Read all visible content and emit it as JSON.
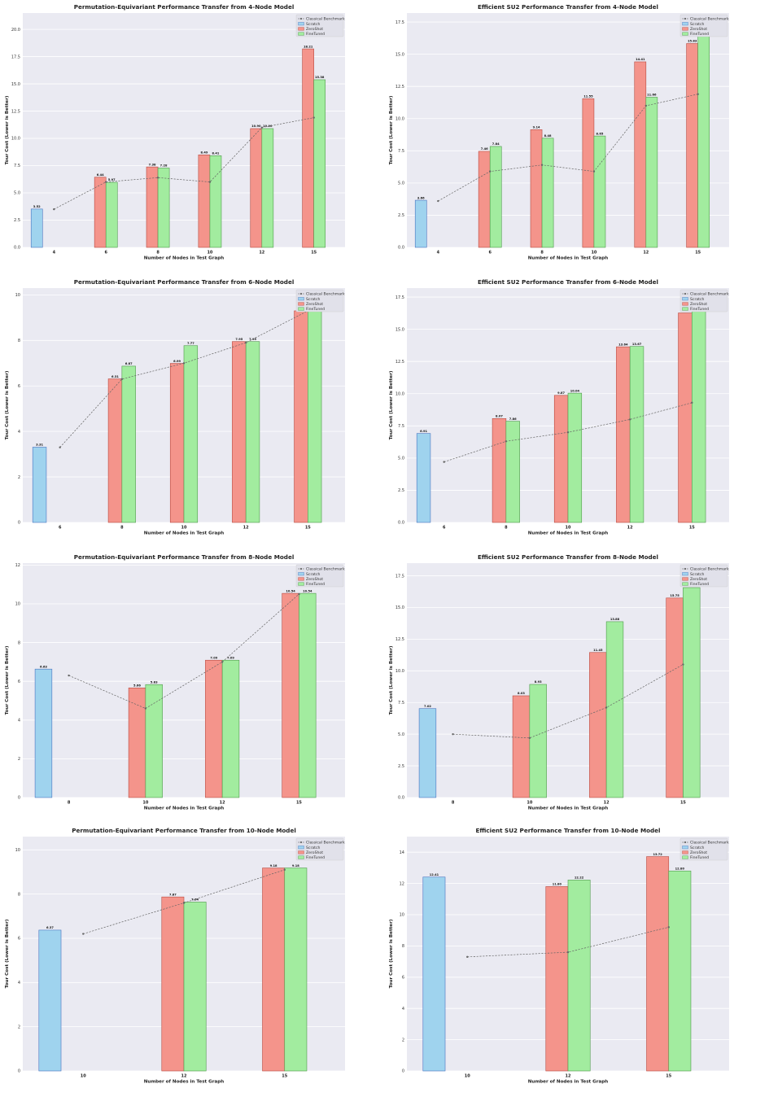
{
  "colors": {
    "scratch": "#9fd3ee",
    "scratch_edge": "#4a74c0",
    "zeroshot": "#f4948b",
    "zeroshot_edge": "#b84a40",
    "finetuned": "#a2ec9f",
    "finetuned_edge": "#4e9a4a",
    "benchmark": "#666666",
    "plot_bg": "#eaeaf2",
    "grid": "#ffffff"
  },
  "legend": [
    "Classical Benchmark",
    "Scratch",
    "ZeroShot",
    "FineTuned"
  ],
  "chart_data": [
    {
      "type": "bar",
      "title": "Permutation-Equivariant Performance Transfer from 4-Node Model",
      "xlabel": "Number of Nodes in Test Graph",
      "ylabel": "Tour Cost (Lower is Better)",
      "categories": [
        "4",
        "6",
        "8",
        "10",
        "12",
        "15"
      ],
      "ylim": [
        0,
        21.5
      ],
      "yticks": [
        "0.0",
        "2.5",
        "5.0",
        "7.5",
        "10.0",
        "12.5",
        "15.0",
        "17.5",
        "20.0"
      ],
      "ytick_values": [
        0,
        2.5,
        5,
        7.5,
        10,
        12.5,
        15,
        17.5,
        20
      ],
      "series": [
        {
          "name": "Scratch",
          "values": [
            3.52,
            null,
            null,
            null,
            null,
            null
          ],
          "labels": [
            "3.52",
            "",
            "",
            "",
            "",
            ""
          ]
        },
        {
          "name": "ZeroShot",
          "values": [
            null,
            6.44,
            7.38,
            8.49,
            10.9,
            18.21
          ],
          "labels": [
            "",
            "6.44",
            "7.38",
            "8.49",
            "10.90",
            "18.21"
          ]
        },
        {
          "name": "FineTuned",
          "values": [
            null,
            5.97,
            7.28,
            8.41,
            10.9,
            15.38
          ],
          "labels": [
            "",
            "5.97",
            "7.28",
            "8.41",
            "10.90",
            "15.38"
          ]
        }
      ],
      "benchmark": [
        3.5,
        6.0,
        6.4,
        6.0,
        11.0,
        11.9
      ]
    },
    {
      "type": "bar",
      "title": "Efficient SU2 Performance Transfer from 4-Node Model",
      "xlabel": "Number of Nodes in Test Graph",
      "ylabel": "Tour Cost (Lower is Better)",
      "categories": [
        "4",
        "6",
        "8",
        "10",
        "12",
        "15"
      ],
      "ylim": [
        0,
        18.2
      ],
      "yticks": [
        "0.0",
        "2.5",
        "5.0",
        "7.5",
        "10.0",
        "12.5",
        "15.0",
        "17.5"
      ],
      "ytick_values": [
        0,
        2.5,
        5,
        7.5,
        10,
        12.5,
        15,
        17.5
      ],
      "series": [
        {
          "name": "Scratch",
          "values": [
            3.66,
            null,
            null,
            null,
            null,
            null
          ],
          "labels": [
            "3.66",
            "",
            "",
            "",
            "",
            ""
          ]
        },
        {
          "name": "ZeroShot",
          "values": [
            null,
            7.46,
            9.14,
            11.55,
            14.41,
            15.83
          ],
          "labels": [
            "",
            "7.46",
            "9.14",
            "11.55",
            "14.41",
            "15.83"
          ]
        },
        {
          "name": "FineTuned",
          "values": [
            null,
            7.84,
            8.48,
            8.65,
            11.66,
            17.18
          ],
          "labels": [
            "",
            "7.84",
            "8.48",
            "8.65",
            "11.66",
            "17.18"
          ]
        }
      ],
      "benchmark": [
        3.6,
        5.9,
        6.4,
        5.9,
        11.0,
        11.9
      ]
    },
    {
      "type": "bar",
      "title": "Permutation-Equivariant Performance Transfer from 6-Node Model",
      "xlabel": "Number of Nodes in Test Graph",
      "ylabel": "Tour Cost (Lower is Better)",
      "categories": [
        "6",
        "8",
        "10",
        "12",
        "15"
      ],
      "ylim": [
        0,
        10.3
      ],
      "yticks": [
        "0",
        "2",
        "4",
        "6",
        "8",
        "10"
      ],
      "ytick_values": [
        0,
        2,
        4,
        6,
        8,
        10
      ],
      "series": [
        {
          "name": "Scratch",
          "values": [
            3.31,
            null,
            null,
            null,
            null
          ],
          "labels": [
            "3.31",
            "",
            "",
            "",
            ""
          ]
        },
        {
          "name": "ZeroShot",
          "values": [
            null,
            6.31,
            6.99,
            7.95,
            9.3
          ],
          "labels": [
            "",
            "6.31",
            "6.99",
            "7.95",
            "9.30"
          ]
        },
        {
          "name": "FineTuned",
          "values": [
            null,
            6.87,
            7.77,
            7.95,
            9.79
          ],
          "labels": [
            "",
            "6.87",
            "7.77",
            "7.95",
            "9.79"
          ]
        }
      ],
      "benchmark": [
        3.3,
        6.3,
        7.0,
        7.9,
        9.3
      ]
    },
    {
      "type": "bar",
      "title": "Efficient SU2 Performance Transfer from 6-Node Model",
      "xlabel": "Number of Nodes in Test Graph",
      "ylabel": "Tour Cost (Lower is Better)",
      "categories": [
        "6",
        "8",
        "10",
        "12",
        "15"
      ],
      "ylim": [
        0,
        18.2
      ],
      "yticks": [
        "0.0",
        "2.5",
        "5.0",
        "7.5",
        "10.0",
        "12.5",
        "15.0",
        "17.5"
      ],
      "ytick_values": [
        0,
        2.5,
        5,
        7.5,
        10,
        12.5,
        15,
        17.5
      ],
      "series": [
        {
          "name": "Scratch",
          "values": [
            6.91,
            null,
            null,
            null,
            null
          ],
          "labels": [
            "6.91",
            "",
            "",
            "",
            ""
          ]
        },
        {
          "name": "ZeroShot",
          "values": [
            null,
            8.07,
            9.87,
            13.64,
            16.27
          ],
          "labels": [
            "",
            "8.07",
            "9.87",
            "13.64",
            "16.27"
          ]
        },
        {
          "name": "FineTuned",
          "values": [
            null,
            7.86,
            10.04,
            13.67,
            16.47
          ],
          "labels": [
            "",
            "7.86",
            "10.04",
            "13.67",
            "16.47"
          ]
        }
      ],
      "benchmark": [
        4.7,
        6.3,
        7.0,
        8.0,
        9.3
      ]
    },
    {
      "type": "bar",
      "title": "Permutation-Equivariant Performance Transfer from 8-Node Model",
      "xlabel": "Number of Nodes in Test Graph",
      "ylabel": "Tour Cost (Lower is Better)",
      "categories": [
        "8",
        "10",
        "12",
        "15"
      ],
      "ylim": [
        0,
        12.1
      ],
      "yticks": [
        "0",
        "2",
        "4",
        "6",
        "8",
        "10",
        "12"
      ],
      "ytick_values": [
        0,
        2,
        4,
        6,
        8,
        10,
        12
      ],
      "series": [
        {
          "name": "Scratch",
          "values": [
            6.63,
            null,
            null,
            null
          ],
          "labels": [
            "6.63",
            "",
            "",
            ""
          ]
        },
        {
          "name": "ZeroShot",
          "values": [
            null,
            5.66,
            7.09,
            10.54
          ],
          "labels": [
            "",
            "5.66",
            "7.09",
            "10.54"
          ]
        },
        {
          "name": "FineTuned",
          "values": [
            null,
            5.83,
            7.09,
            10.54
          ],
          "labels": [
            "",
            "5.83",
            "7.09",
            "10.54"
          ]
        }
      ],
      "benchmark": [
        6.3,
        4.6,
        7.0,
        10.5
      ]
    },
    {
      "type": "bar",
      "title": "Efficient SU2 Performance Transfer from 8-Node Model",
      "xlabel": "Number of Nodes in Test Graph",
      "ylabel": "Tour Cost (Lower is Better)",
      "categories": [
        "8",
        "10",
        "12",
        "15"
      ],
      "ylim": [
        0,
        18.5
      ],
      "yticks": [
        "0.0",
        "2.5",
        "5.0",
        "7.5",
        "10.0",
        "12.5",
        "15.0",
        "17.5"
      ],
      "ytick_values": [
        0,
        2.5,
        5,
        7.5,
        10,
        12.5,
        15,
        17.5
      ],
      "series": [
        {
          "name": "Scratch",
          "values": [
            7.02,
            null,
            null,
            null
          ],
          "labels": [
            "7.02",
            "",
            "",
            ""
          ]
        },
        {
          "name": "ZeroShot",
          "values": [
            null,
            8.03,
            11.45,
            15.75
          ],
          "labels": [
            "",
            "8.03",
            "11.45",
            "15.75"
          ]
        },
        {
          "name": "FineTuned",
          "values": [
            null,
            8.93,
            13.88,
            16.57
          ],
          "labels": [
            "",
            "8.93",
            "13.88",
            "16.57"
          ]
        }
      ],
      "benchmark": [
        5.0,
        4.7,
        7.1,
        10.5
      ]
    },
    {
      "type": "bar",
      "title": "Permutation-Equivariant Performance Transfer from 10-Node Model",
      "xlabel": "Number of Nodes in Test Graph",
      "ylabel": "Tour Cost (Lower is Better)",
      "categories": [
        "10",
        "12",
        "15"
      ],
      "ylim": [
        0,
        10.6
      ],
      "yticks": [
        "0",
        "2",
        "4",
        "6",
        "8",
        "10"
      ],
      "ytick_values": [
        0,
        2,
        4,
        6,
        8,
        10
      ],
      "series": [
        {
          "name": "Scratch",
          "values": [
            6.37,
            null,
            null
          ],
          "labels": [
            "6.37",
            "",
            ""
          ]
        },
        {
          "name": "ZeroShot",
          "values": [
            null,
            7.87,
            9.18
          ],
          "labels": [
            "",
            "7.87",
            "9.18"
          ]
        },
        {
          "name": "FineTuned",
          "values": [
            null,
            7.64,
            9.18
          ],
          "labels": [
            "",
            "7.64",
            "9.18"
          ]
        }
      ],
      "benchmark": [
        6.2,
        7.6,
        9.1
      ]
    },
    {
      "type": "bar",
      "title": "Efficient SU2 Performance Transfer from 10-Node Model",
      "xlabel": "Number of Nodes in Test Graph",
      "ylabel": "Tour Cost (Lower is Better)",
      "categories": [
        "10",
        "12",
        "15"
      ],
      "ylim": [
        0,
        15.0
      ],
      "yticks": [
        "0",
        "2",
        "4",
        "6",
        "8",
        "10",
        "12",
        "14"
      ],
      "ytick_values": [
        0,
        2,
        4,
        6,
        8,
        10,
        12,
        14
      ],
      "series": [
        {
          "name": "Scratch",
          "values": [
            12.41,
            null,
            null
          ],
          "labels": [
            "12.41",
            "",
            ""
          ]
        },
        {
          "name": "ZeroShot",
          "values": [
            null,
            11.8,
            13.72
          ],
          "labels": [
            "",
            "11.80",
            "13.72"
          ]
        },
        {
          "name": "FineTuned",
          "values": [
            null,
            12.22,
            12.8
          ],
          "labels": [
            "",
            "12.22",
            "12.80"
          ]
        }
      ],
      "benchmark": [
        7.3,
        7.6,
        9.2
      ]
    }
  ]
}
